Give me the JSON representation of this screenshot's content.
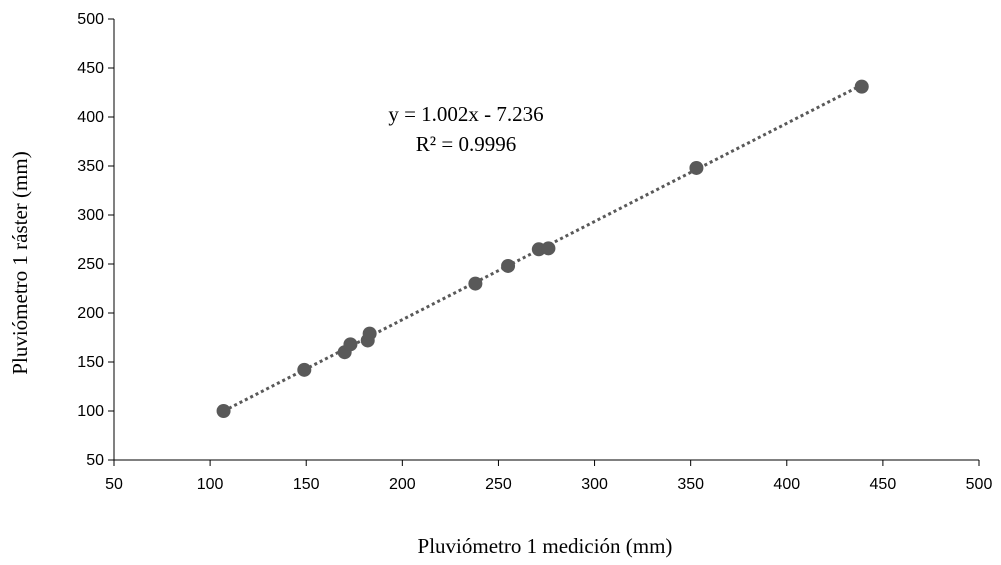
{
  "chart_data": {
    "type": "scatter",
    "title": "",
    "xlabel": "Pluviómetro 1 medición (mm)",
    "ylabel": "Pluviómetro 1 ráster (mm)",
    "xlim": [
      50,
      500
    ],
    "ylim": [
      50,
      500
    ],
    "xticks": [
      50,
      100,
      150,
      200,
      250,
      300,
      350,
      400,
      450,
      500
    ],
    "yticks": [
      50,
      100,
      150,
      200,
      250,
      300,
      350,
      400,
      450,
      500
    ],
    "grid": false,
    "legend": "none",
    "series": [
      {
        "x": [
          107,
          149,
          170,
          173,
          182,
          183,
          238,
          255,
          271,
          276,
          353,
          439
        ],
        "y": [
          100,
          142,
          160,
          168,
          172,
          179,
          230,
          248,
          265,
          266,
          348,
          431
        ],
        "color": "#595959"
      }
    ],
    "trendline": {
      "type": "linear",
      "slope": 1.002,
      "intercept": -7.236,
      "style": "dotted",
      "color": "#595959"
    },
    "annotations": {
      "equation": "y = 1.002x - 7.236",
      "r_squared": "R² = 0.9996"
    }
  }
}
